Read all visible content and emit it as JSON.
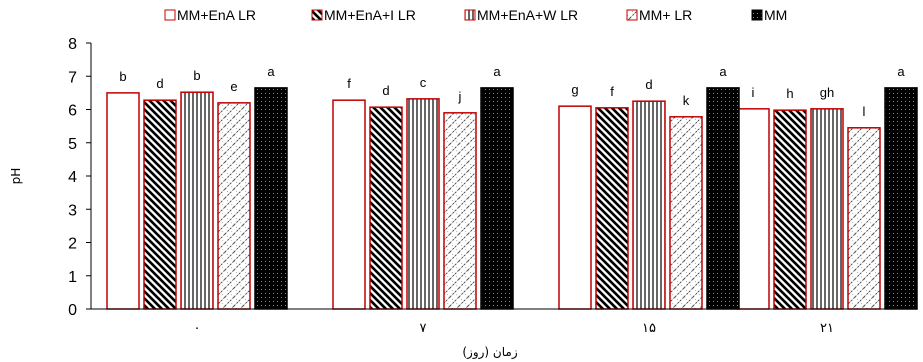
{
  "chart_data": {
    "type": "bar",
    "xlabel": "زمان (روز)",
    "ylabel": "pH",
    "ylim": [
      0,
      8
    ],
    "yticks": [
      "0",
      "1",
      "2",
      "3",
      "4",
      "5",
      "6",
      "7",
      "8"
    ],
    "categories": [
      "۰",
      "۷",
      "۱۵",
      "۲۱"
    ],
    "legend_position": "top",
    "grid": false,
    "series": [
      {
        "name": "MM+EnA LR",
        "pattern": "white",
        "edge_color": "#c00000",
        "values": [
          6.5,
          6.28,
          6.1,
          6.02
        ],
        "labels": [
          "b",
          "f",
          "g",
          "i"
        ]
      },
      {
        "name": "MM+EnA+I LR",
        "pattern": "diagonal",
        "edge_color": "#c00000",
        "values": [
          6.28,
          6.07,
          6.05,
          5.98
        ],
        "labels": [
          "d",
          "d",
          "f",
          "h"
        ]
      },
      {
        "name": "MM+EnA+W LR",
        "pattern": "vertical",
        "edge_color": "#c00000",
        "values": [
          6.52,
          6.32,
          6.25,
          6.02
        ],
        "labels": [
          "b",
          "c",
          "d",
          "gh"
        ]
      },
      {
        "name": "MM+ LR",
        "pattern": "hatch",
        "edge_color": "#c00000",
        "values": [
          6.2,
          5.9,
          5.78,
          5.45
        ],
        "labels": [
          "e",
          "j",
          "k",
          "l"
        ]
      },
      {
        "name": "MM",
        "pattern": "black",
        "edge_color": "#000000",
        "values": [
          6.65,
          6.65,
          6.65,
          6.65
        ],
        "labels": [
          "a",
          "a",
          "a",
          "a"
        ]
      }
    ]
  }
}
